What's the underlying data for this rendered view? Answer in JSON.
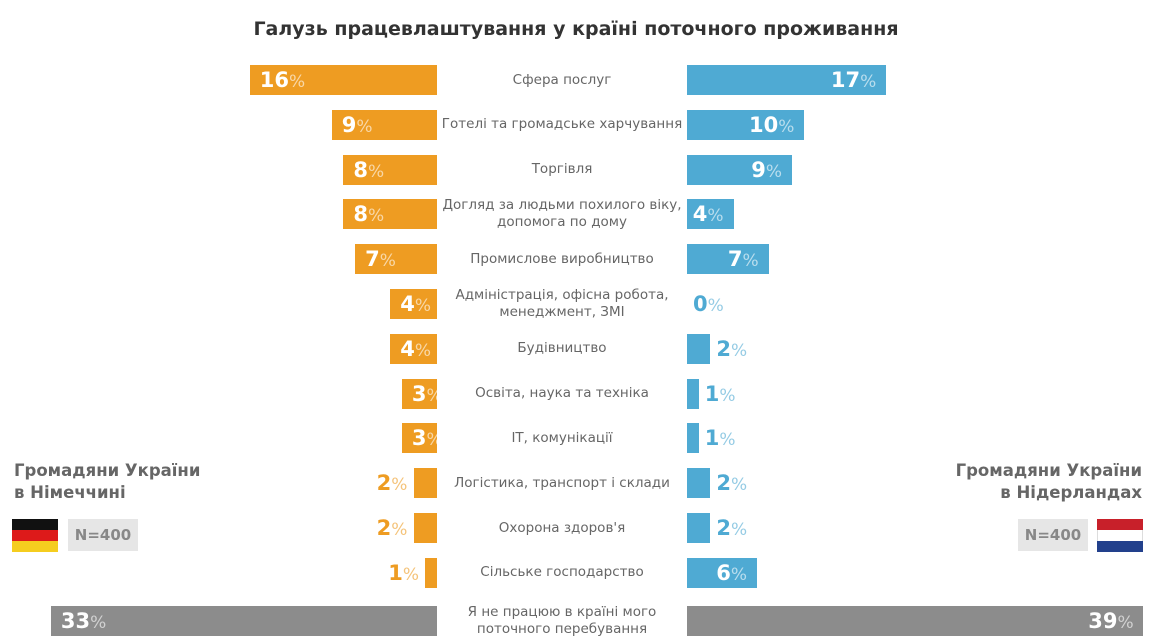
{
  "chart_data": {
    "type": "bar",
    "orientation": "horizontal-butterfly",
    "title": "Галузь працевлаштування у країні поточного проживання",
    "unit": "%",
    "categories": [
      "Сфера послуг",
      "Готелі та громадське харчування",
      "Торгівля",
      "Догляд за людьми похилого віку, допомога по дому",
      "Промислове виробництво",
      "Адміністрація, офісна робота, менеджмент, ЗМІ",
      "Будівництво",
      "Освіта, наука та техніка",
      "IT, комунікації",
      "Логістика, транспорт і склади",
      "Охорона здоров'я",
      "Сільське господарство",
      "Я не працюю в країні мого поточного перебування"
    ],
    "series": [
      {
        "name": "Громадяни України в Німеччині",
        "sample": "N=400",
        "side": "left",
        "color": "#EE9C22",
        "values": [
          16,
          9,
          8,
          8,
          7,
          4,
          4,
          3,
          3,
          2,
          2,
          1,
          33
        ]
      },
      {
        "name": "Громадяни України в Нідерландах",
        "sample": "N=400",
        "side": "right",
        "color": "#4FAAD3",
        "values": [
          17,
          10,
          9,
          4,
          7,
          0,
          2,
          1,
          1,
          2,
          2,
          6,
          39
        ]
      }
    ],
    "last_row_color": "#8C8C8C",
    "grid": false
  },
  "groups": {
    "left": {
      "line1": "Громадяни України",
      "line2": "в Німеччині",
      "n": "N=400",
      "flag": "germany-flag-icon"
    },
    "right": {
      "line1": "Громадяни України",
      "line2": "в Нідерландах",
      "n": "N=400",
      "flag": "netherlands-flag-icon"
    }
  }
}
